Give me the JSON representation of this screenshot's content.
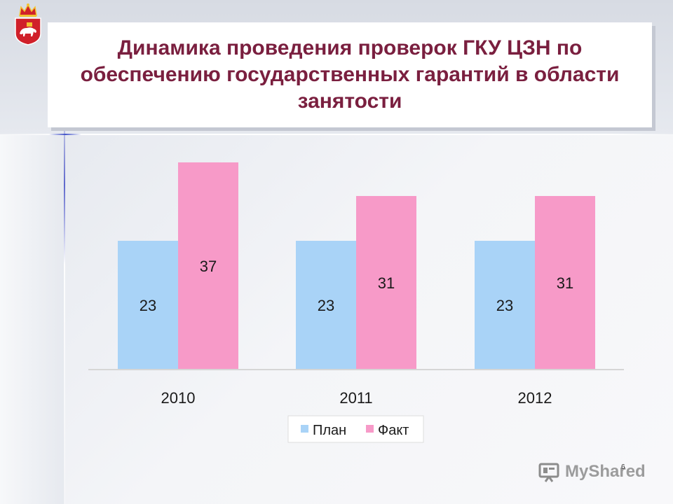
{
  "slide": {
    "title": "Динамика проведения проверок ГКУ ЦЗН по обеспечению государственных гарантий в области занятости",
    "page_number": "6",
    "watermark": "MyShared"
  },
  "icons": {
    "emblem": "perm-krai-coat-of-arms-icon",
    "watermark": "projector-screen-icon"
  },
  "colors": {
    "title": "#7a1f3f",
    "plan": "#a9d3f7",
    "fact": "#f79ac8"
  },
  "chart_data": {
    "type": "bar",
    "title": "",
    "xlabel": "",
    "ylabel": "",
    "categories": [
      "2010",
      "2011",
      "2012"
    ],
    "series": [
      {
        "name": "План",
        "values": [
          23,
          23,
          23
        ],
        "color": "#a9d3f7"
      },
      {
        "name": "Факт",
        "values": [
          37,
          31,
          31
        ],
        "color": "#f79ac8"
      }
    ],
    "data_labels": true,
    "grid": false,
    "legend": "bottom-center",
    "ylim": [
      0,
      40
    ]
  }
}
